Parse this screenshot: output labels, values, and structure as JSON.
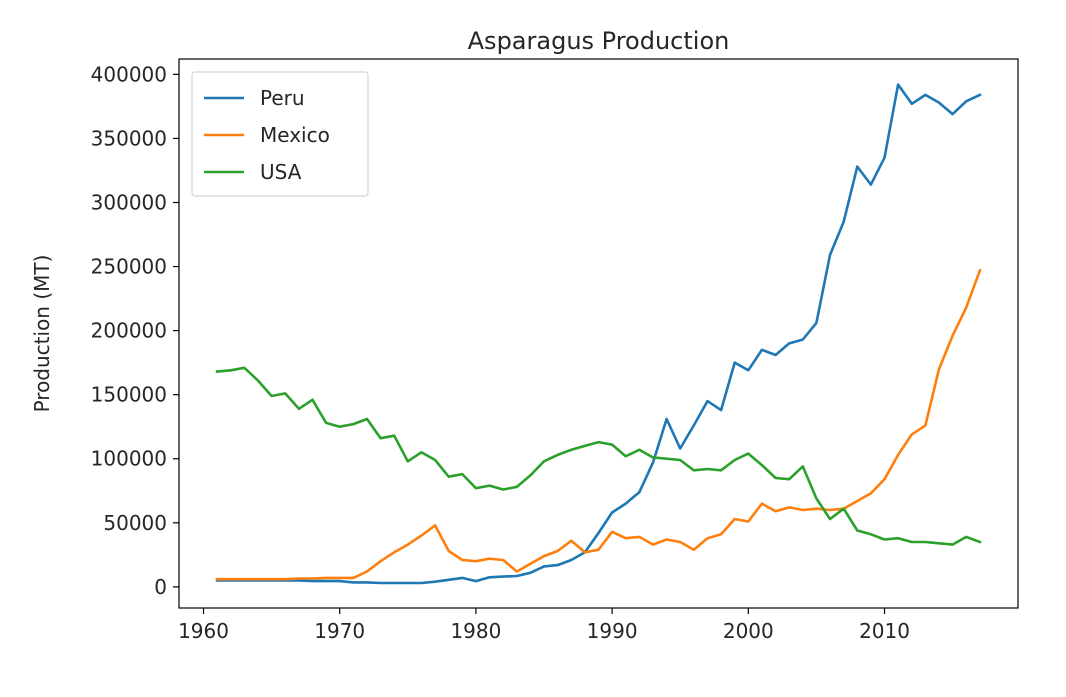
{
  "chart_data": {
    "type": "line",
    "title": "Asparagus Production",
    "xlabel": "",
    "ylabel": "Production (MT)",
    "xlim": [
      1958.2,
      2019.8
    ],
    "ylim": [
      -16500,
      412000
    ],
    "xticks": [
      1960,
      1970,
      1980,
      1990,
      2000,
      2010
    ],
    "yticks": [
      0,
      50000,
      100000,
      150000,
      200000,
      250000,
      300000,
      350000,
      400000
    ],
    "grid": false,
    "legend_position": "upper-left",
    "x": [
      1961,
      1962,
      1963,
      1964,
      1965,
      1966,
      1967,
      1968,
      1969,
      1970,
      1971,
      1972,
      1973,
      1974,
      1975,
      1976,
      1977,
      1978,
      1979,
      1980,
      1981,
      1982,
      1983,
      1984,
      1985,
      1986,
      1987,
      1988,
      1989,
      1990,
      1991,
      1992,
      1993,
      1994,
      1995,
      1996,
      1997,
      1998,
      1999,
      2000,
      2001,
      2002,
      2003,
      2004,
      2005,
      2006,
      2007,
      2008,
      2009,
      2010,
      2011,
      2012,
      2013,
      2014,
      2015,
      2016,
      2017
    ],
    "series": [
      {
        "name": "Peru",
        "color": "#1f77b4",
        "values": [
          5000,
          5000,
          5000,
          5000,
          5000,
          5000,
          5000,
          4500,
          4500,
          4500,
          3500,
          3500,
          3000,
          3000,
          3000,
          3000,
          4000,
          5500,
          7000,
          4500,
          7500,
          8000,
          8500,
          11000,
          16000,
          17000,
          21000,
          27000,
          42000,
          58000,
          65000,
          74000,
          97000,
          131000,
          108000,
          126000,
          145000,
          138000,
          175000,
          169000,
          185000,
          181000,
          190000,
          193000,
          206000,
          259000,
          285000,
          328000,
          314000,
          335000,
          392000,
          377000,
          384000,
          378000,
          369000,
          379000,
          384000
        ]
      },
      {
        "name": "Mexico",
        "color": "#ff7f0e",
        "values": [
          6000,
          6000,
          6000,
          6000,
          6000,
          6000,
          6500,
          6500,
          7000,
          7000,
          7000,
          12000,
          20000,
          27000,
          33000,
          40000,
          48000,
          28000,
          21000,
          20000,
          22000,
          21000,
          12000,
          18000,
          24000,
          28000,
          36000,
          27000,
          29000,
          43000,
          38000,
          39000,
          33000,
          37000,
          35000,
          29000,
          38000,
          41000,
          53000,
          51000,
          65000,
          59000,
          62000,
          60000,
          61000,
          60000,
          61000,
          67000,
          73000,
          84000,
          103000,
          119000,
          126000,
          170000,
          196000,
          218000,
          247000
        ]
      },
      {
        "name": "USA",
        "color": "#2ca02c",
        "values": [
          168000,
          169000,
          171000,
          161000,
          149000,
          151000,
          139000,
          146000,
          128000,
          125000,
          127000,
          131000,
          116000,
          118000,
          98000,
          105000,
          99000,
          86000,
          88000,
          77000,
          79000,
          76000,
          78000,
          87000,
          98000,
          103000,
          107000,
          110000,
          113000,
          111000,
          102000,
          107000,
          101000,
          100000,
          99000,
          91000,
          92000,
          91000,
          99000,
          104000,
          95000,
          85000,
          84000,
          94000,
          69000,
          53000,
          61000,
          44000,
          41000,
          37000,
          38000,
          35000,
          35000,
          34000,
          33000,
          39000,
          35000
        ]
      }
    ]
  }
}
